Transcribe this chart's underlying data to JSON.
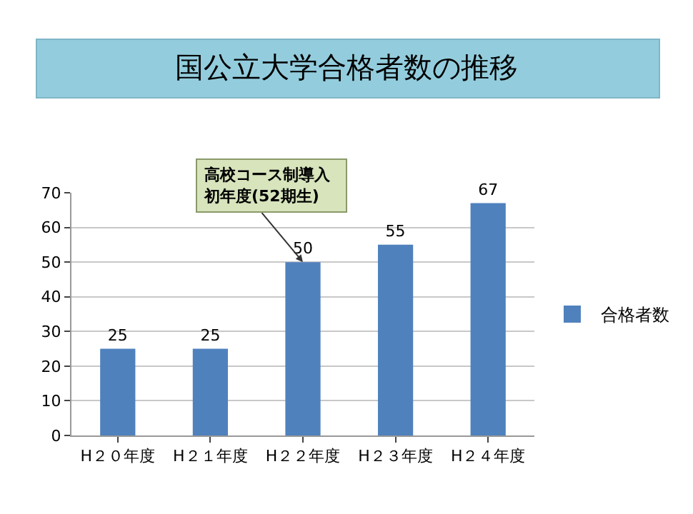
{
  "chart_data": {
    "type": "bar",
    "title": "国公立大学合格者数の推移",
    "categories": [
      "H２０年度",
      "H２１年度",
      "H２２年度",
      "H２３年度",
      "H２４年度"
    ],
    "series": [
      {
        "name": "合格者数",
        "color": "#4f81bd",
        "values": [
          25,
          25,
          50,
          55,
          67
        ]
      }
    ],
    "ylim": [
      0,
      70
    ],
    "yticks": [
      0,
      10,
      20,
      30,
      40,
      50,
      60,
      70
    ],
    "grid": "y",
    "legend": "right",
    "data_labels": true,
    "annotations": [
      {
        "text": "高校コース制導入初年度(52期生)",
        "x": "H２２年度",
        "y": 50
      }
    ]
  }
}
